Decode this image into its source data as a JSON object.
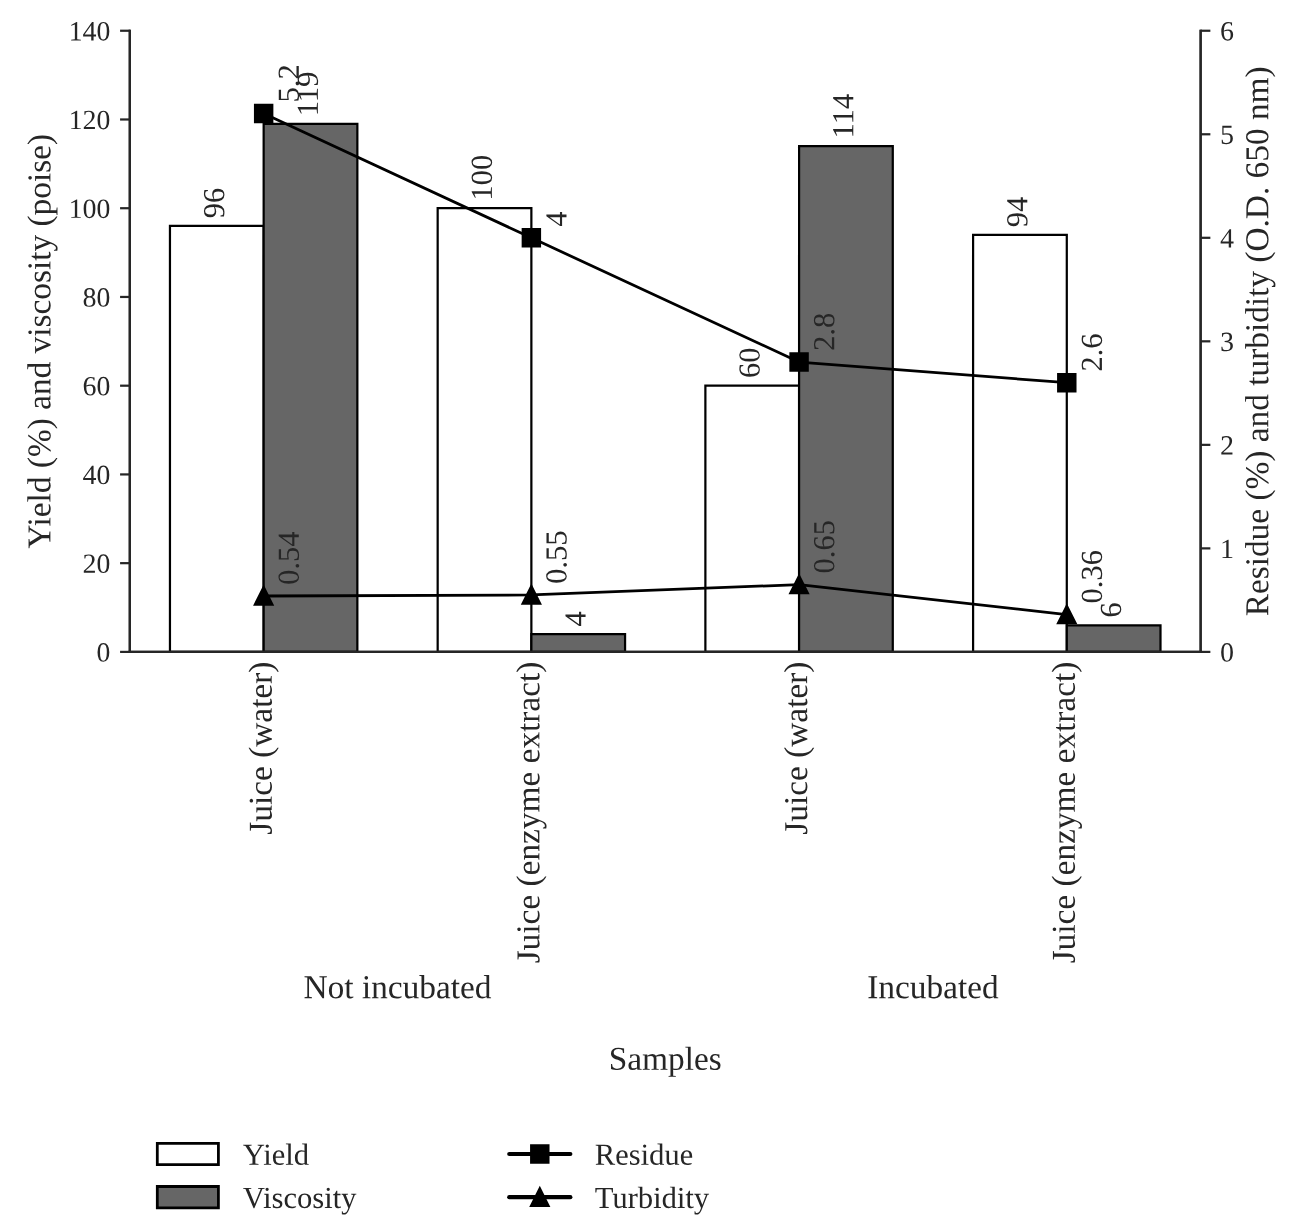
{
  "chart_data": {
    "type": "bar",
    "xlabel": "Samples",
    "ylabel": "Yield (%) and viscosity (poise)",
    "y2label": "Residue (%) and turbidity (O.D. 650 nm)",
    "categories": [
      "Juice (water)",
      "Juice (enzyme extract)",
      "Juice (water)",
      "Juice (enzyme extract)"
    ],
    "series": [
      {
        "name": "Yield",
        "color": "#ffffff",
        "values": [
          96,
          100,
          60,
          94
        ]
      },
      {
        "name": "Viscosity",
        "color": "#666666",
        "values": [
          119,
          4,
          114,
          6
        ]
      },
      {
        "name": "Residue",
        "type": "line",
        "axis": "y2",
        "color": "#000000",
        "marker": "square",
        "values": [
          5.2,
          4,
          2.8,
          2.6
        ]
      },
      {
        "name": "Turbidity",
        "type": "line",
        "axis": "y2",
        "color": "#000000",
        "marker": "triangle",
        "values": [
          0.54,
          0.55,
          0.65,
          0.36
        ]
      }
    ],
    "ylim": [
      0,
      140
    ],
    "yticks": [
      0,
      20,
      40,
      60,
      80,
      100,
      120,
      140
    ],
    "y2lim": [
      0,
      6
    ],
    "y2ticks": [
      0,
      1,
      2,
      3,
      4,
      5,
      6
    ],
    "data_labels": true,
    "legend": "bottom",
    "grid": false,
    "annotations": [
      "Not incubated",
      "Incubated"
    ]
  }
}
